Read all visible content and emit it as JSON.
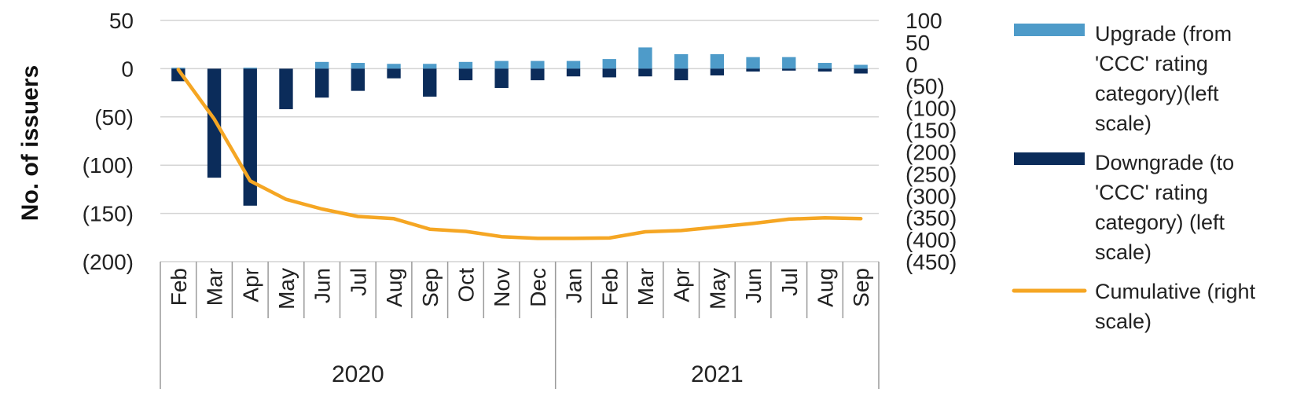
{
  "chart_data": {
    "type": "bar",
    "ylabel": "No. of issuers",
    "left_ylim": [
      -200,
      50
    ],
    "left_ticks": [
      "50",
      "0",
      "(50)",
      "(100)",
      "(150)",
      "(200)"
    ],
    "right_ylim": [
      -450,
      100
    ],
    "right_ticks": [
      "100",
      "50",
      "0",
      "(50)",
      "(100)",
      "(150)",
      "(200)",
      "(250)",
      "(300)",
      "(350)",
      "(400)",
      "(450)"
    ],
    "categories": [
      "Feb",
      "Mar",
      "Apr",
      "May",
      "Jun",
      "Jul",
      "Aug",
      "Sep",
      "Oct",
      "Nov",
      "Dec",
      "Jan",
      "Feb",
      "Mar",
      "Apr",
      "May",
      "Jun",
      "Jul",
      "Aug",
      "Sep"
    ],
    "groups": [
      {
        "label": "2020",
        "count": 11
      },
      {
        "label": "2021",
        "count": 9
      }
    ],
    "series": [
      {
        "name": "Upgrade (from 'CCC' rating category)(left scale)",
        "kind": "bar",
        "axis": "left",
        "color": "#4e9bc9",
        "values": [
          1,
          0,
          1,
          0,
          7,
          6,
          5,
          5,
          7,
          8,
          8,
          8,
          10,
          22,
          15,
          15,
          12,
          12,
          6,
          4
        ]
      },
      {
        "name": "Downgrade (to 'CCC' rating category) (left scale)",
        "kind": "bar",
        "axis": "left",
        "color": "#0b2c5a",
        "values": [
          -13,
          -113,
          -142,
          -42,
          -30,
          -23,
          -10,
          -29,
          -12,
          -20,
          -12,
          -8,
          -9,
          -8,
          -12,
          -7,
          -3,
          -2,
          -3,
          -5
        ]
      },
      {
        "name": "Cumulative (right scale)",
        "kind": "line",
        "axis": "right",
        "color": "#f5a623",
        "values": [
          -12,
          -125,
          -266,
          -308,
          -330,
          -347,
          -352,
          -376,
          -381,
          -393,
          -397,
          -397,
          -396,
          -382,
          -379,
          -371,
          -363,
          -353,
          -350,
          -352
        ]
      }
    ],
    "legend_position": "right",
    "grid": true
  }
}
